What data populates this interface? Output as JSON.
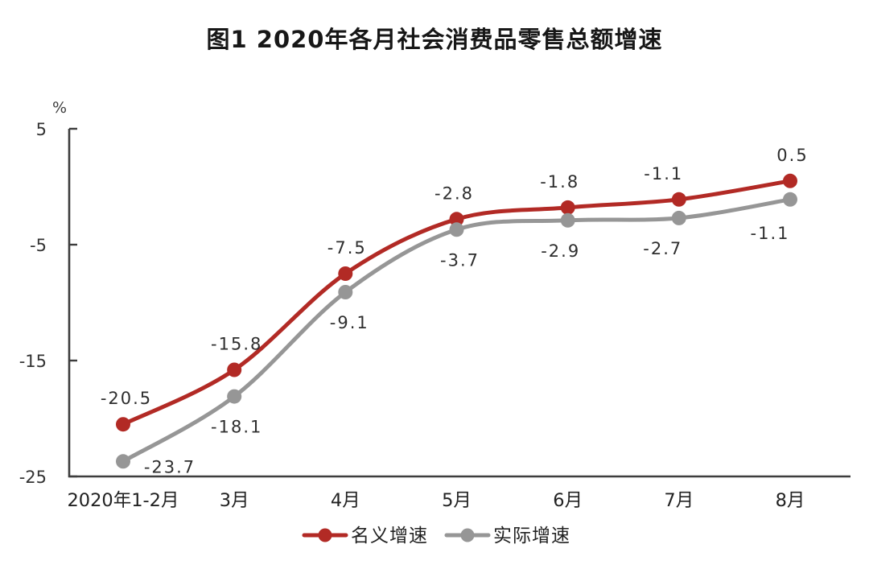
{
  "title": "图1  2020年各月社会消费品零售总额增速",
  "chart_data": {
    "type": "line",
    "title": "图1  2020年各月社会消费品零售总额增速",
    "unit": "%",
    "categories": [
      "2020年1-2月",
      "3月",
      "4月",
      "5月",
      "6月",
      "7月",
      "8月"
    ],
    "series": [
      {
        "name": "名义增速",
        "color": "#b22a25",
        "values": [
          -20.5,
          -15.8,
          -7.5,
          -2.8,
          -1.8,
          -1.1,
          0.5
        ]
      },
      {
        "name": "实际增速",
        "color": "#969696",
        "values": [
          -23.7,
          -18.1,
          -9.1,
          -3.7,
          -2.9,
          -2.7,
          -1.1
        ]
      }
    ],
    "ylim": [
      -25,
      5
    ],
    "yticks": [
      5,
      -5,
      -15,
      -25
    ],
    "grid": false,
    "data_labels": true,
    "marker": "circle",
    "legend_position": "bottom"
  },
  "colors": {
    "background": "#ffffff",
    "axis": "#3d3d3d",
    "title_text": "#171717",
    "nominal_series": "#b22a25",
    "real_series": "#969696"
  }
}
